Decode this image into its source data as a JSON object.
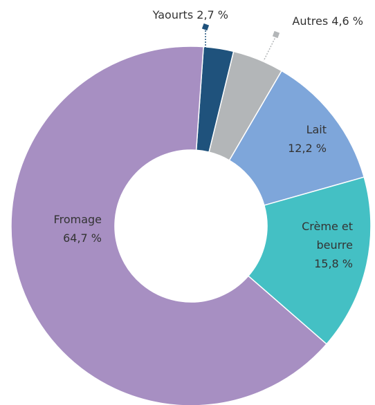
{
  "chart_data": {
    "type": "donut",
    "categories": [
      "Yaourts",
      "Autres",
      "Lait",
      "Crème et beurre",
      "Fromage"
    ],
    "values": [
      2.7,
      4.6,
      12.2,
      15.8,
      64.7
    ],
    "value_labels": [
      "2,7 %",
      "4,6 %",
      "12,2 %",
      "15,8 %",
      "64,7 %"
    ],
    "colors": [
      "#1f527c",
      "#b3b6b8",
      "#7ea6da",
      "#44c0c4",
      "#a78fc2"
    ]
  }
}
